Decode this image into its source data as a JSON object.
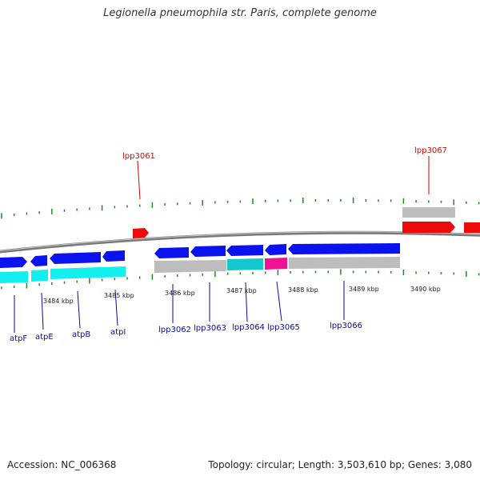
{
  "title": "Legionella pneumophila str. Paris, complete genome",
  "footer": {
    "accession": "Accession: NC_006368",
    "summary": "Topology: circular; Length: 3,503,610 bp; Genes: 3,080"
  },
  "colors": {
    "backbone": "#8c8c8c",
    "forward_gene": "#0a12ee",
    "cds_band": "#13eeee",
    "grey_band": "#bdbdbd",
    "highlight_gene": "#ee0a0a",
    "magenta_band": "#ee1393",
    "gc_ticks": "#1f8a1f",
    "label_blue": "#0a0aa6",
    "label_red": "#cc0a0a"
  },
  "scale_labels": [
    "3484 kbp",
    "3485 kbp",
    "3486 kbp",
    "3487 kbp",
    "3488 kbp",
    "3489 kbp",
    "3490 kbp"
  ],
  "gene_labels_bottom": [
    "atpF",
    "atpE",
    "atpB",
    "atpI",
    "lpp3062",
    "lpp3063",
    "lpp3064",
    "lpp3065",
    "lpp3066"
  ],
  "gene_labels_top": [
    "lpp3061",
    "lpp3067"
  ]
}
